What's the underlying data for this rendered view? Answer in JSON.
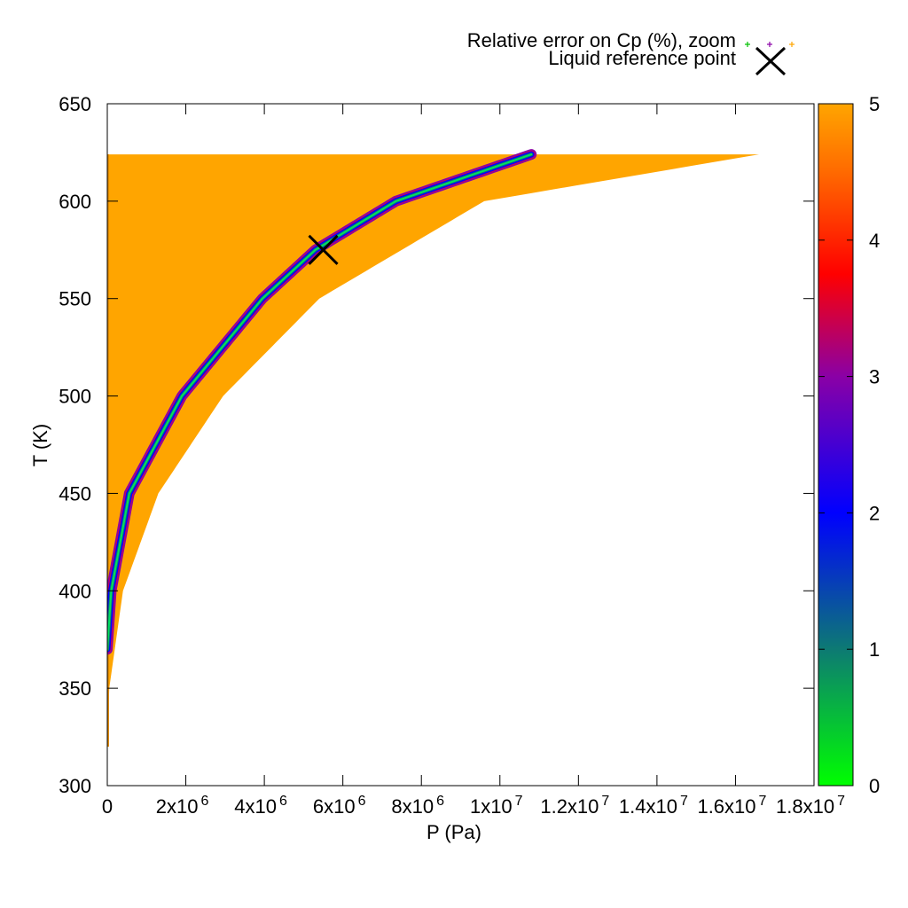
{
  "chart_data": {
    "type": "heatmap",
    "xlabel": "P (Pa)",
    "ylabel": "T (K)",
    "xlim": [
      0,
      18000000
    ],
    "ylim": [
      300,
      650
    ],
    "x_ticks": [
      {
        "value": 0,
        "base": "0",
        "exp": ""
      },
      {
        "value": 2000000,
        "base": "2x10",
        "exp": "6"
      },
      {
        "value": 4000000,
        "base": "4x10",
        "exp": "6"
      },
      {
        "value": 6000000,
        "base": "6x10",
        "exp": "6"
      },
      {
        "value": 8000000,
        "base": "8x10",
        "exp": "6"
      },
      {
        "value": 10000000,
        "base": "1x10",
        "exp": "7"
      },
      {
        "value": 12000000,
        "base": "1.2x10",
        "exp": "7"
      },
      {
        "value": 14000000,
        "base": "1.4x10",
        "exp": "7"
      },
      {
        "value": 16000000,
        "base": "1.6x10",
        "exp": "7"
      },
      {
        "value": 18000000,
        "base": "1.8x10",
        "exp": "7"
      }
    ],
    "y_ticks": [
      300,
      350,
      400,
      450,
      500,
      550,
      600,
      650
    ],
    "colorbar": {
      "range": [
        0,
        5
      ],
      "ticks": [
        0,
        1,
        2,
        3,
        4,
        5
      ],
      "palette": [
        "#00ff00",
        "#0d7a73",
        "#0000ff",
        "#8a00a6",
        "#ff0000",
        "#ff6a00",
        "#ffa500"
      ]
    },
    "region": {
      "description_color": "#ffa500",
      "T_min": 320,
      "T_max": 624,
      "left_edge_P": 0,
      "upper_boundary": [
        {
          "T": 320,
          "P": 0
        },
        {
          "T": 624,
          "P": 16600000
        }
      ],
      "lower_boundary_samples": [
        {
          "T": 350,
          "P": 50000
        },
        {
          "T": 400,
          "P": 400000
        },
        {
          "T": 450,
          "P": 1300000
        },
        {
          "T": 500,
          "P": 2950000
        },
        {
          "T": 550,
          "P": 5400000
        },
        {
          "T": 600,
          "P": 9600000
        },
        {
          "T": 624,
          "P": 16600000
        }
      ]
    },
    "saturation_curve": [
      {
        "T": 370,
        "P": 0
      },
      {
        "T": 400,
        "P": 100000
      },
      {
        "T": 450,
        "P": 560000
      },
      {
        "T": 500,
        "P": 1900000
      },
      {
        "T": 550,
        "P": 3950000
      },
      {
        "T": 575,
        "P": 5300000
      },
      {
        "T": 600,
        "P": 7350000
      },
      {
        "T": 624,
        "P": 10800000
      }
    ],
    "reference_point": {
      "P": 5500000,
      "T": 575
    },
    "legend": [
      {
        "label": "Relative error on Cp (%), zoom",
        "marker": "plus-triplet",
        "colors": [
          "#00c000",
          "#8a00a6",
          "#ffa500"
        ]
      },
      {
        "label": "Liquid reference point",
        "marker": "x"
      }
    ]
  }
}
